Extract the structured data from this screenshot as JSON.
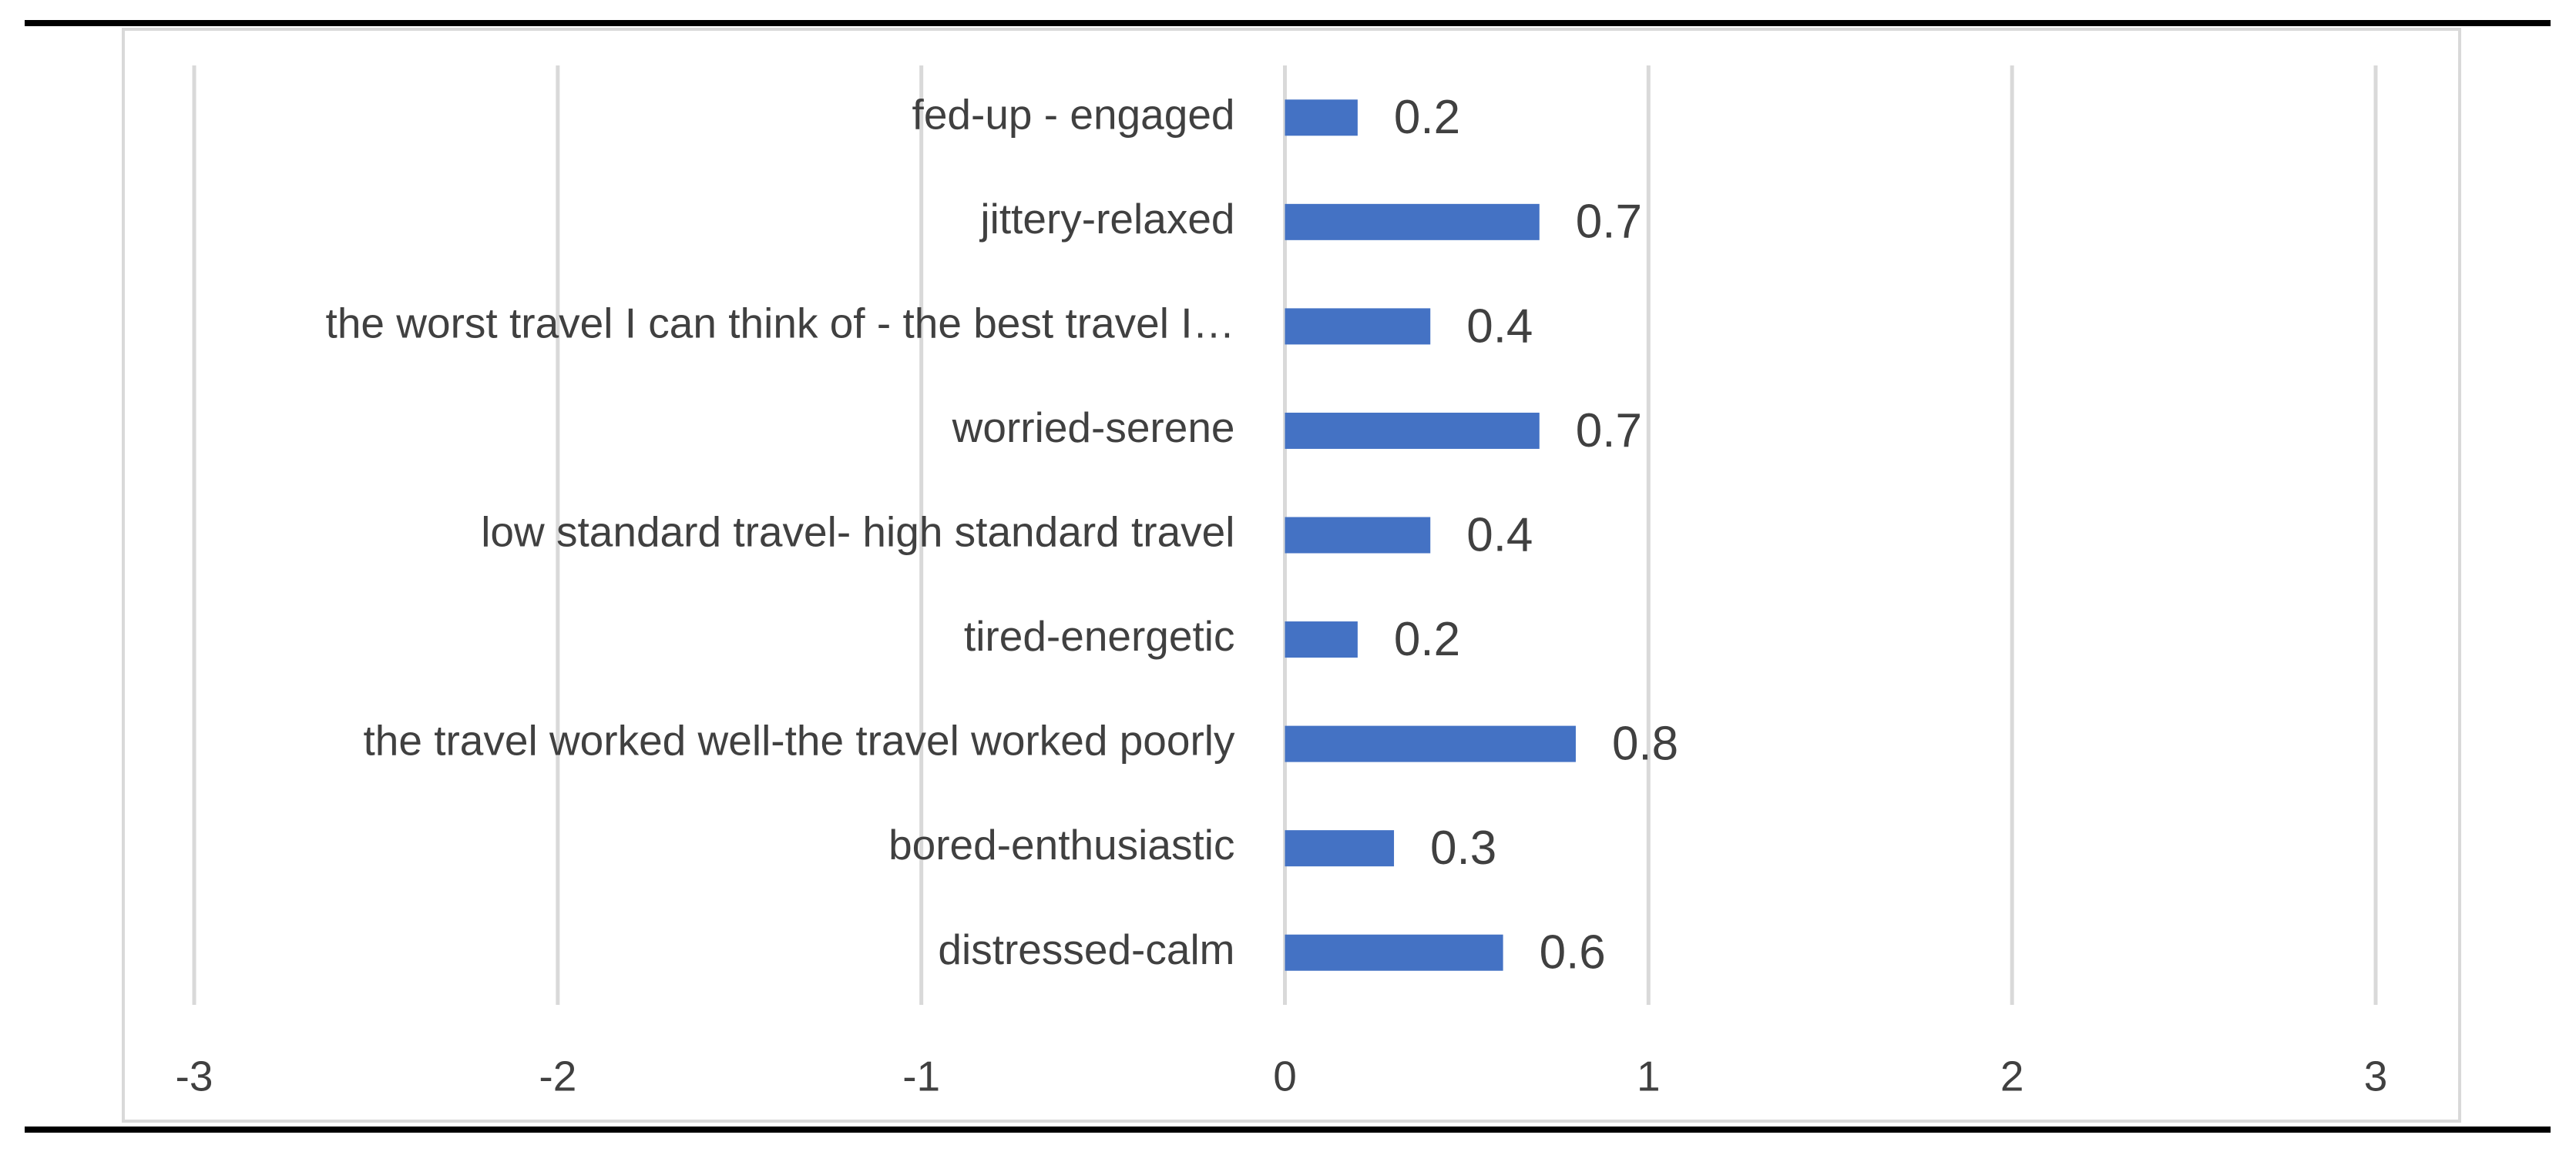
{
  "chart_data": {
    "type": "hbar",
    "categories": [
      "fed-up - engaged",
      "jittery-relaxed",
      "the worst travel I can think of - the  best travel I…",
      "worried-serene",
      "low standard travel- high standard travel",
      "tired-energetic",
      "the travel worked well-the travel worked poorly",
      "bored-enthusiastic",
      "distressed-calm"
    ],
    "values": [
      0.2,
      0.7,
      0.4,
      0.7,
      0.4,
      0.2,
      0.8,
      0.3,
      0.6
    ],
    "color": "#4472c4",
    "xlim": [
      -3,
      3
    ],
    "xticks": [
      -3,
      -2,
      -1,
      0,
      1,
      2,
      3
    ],
    "grid": true
  }
}
